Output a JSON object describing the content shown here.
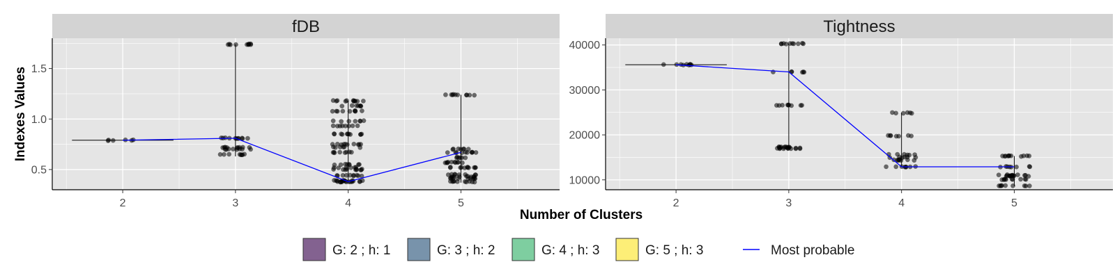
{
  "chart_data": {
    "type": "scatter",
    "xlabel": "Number of Clusters",
    "ylabel": "Indexes Values",
    "x_categories": [
      "2",
      "3",
      "4",
      "5"
    ],
    "panels": [
      {
        "title": "fDB",
        "ylim": [
          0.3,
          1.8
        ],
        "yticks": [
          0.5,
          1.0,
          1.5
        ],
        "ytick_labels": [
          "0.5",
          "1.0",
          "1.5"
        ],
        "point_levels": [
          [
            0.79
          ],
          [
            1.74,
            0.81,
            0.72,
            0.7,
            0.65
          ],
          [
            1.18,
            1.13,
            1.08,
            0.98,
            0.93,
            0.85,
            0.75,
            0.72,
            0.67,
            0.55,
            0.52,
            0.5,
            0.44,
            0.39,
            0.38
          ],
          [
            1.24,
            0.7,
            0.67,
            0.62,
            0.57,
            0.52,
            0.45,
            0.43,
            0.41,
            0.38
          ]
        ],
        "whiskers": [
          [
            0.79,
            0.79
          ],
          [
            0.63,
            1.74
          ],
          [
            0.37,
            1.18
          ],
          [
            0.37,
            1.24
          ]
        ],
        "medians": [
          0.79,
          0.81,
          0.38,
          0.67
        ],
        "most_probable": [
          0.79,
          0.81,
          0.38,
          0.67
        ]
      },
      {
        "title": "Tightness",
        "ylim": [
          7800,
          41500
        ],
        "yticks": [
          10000,
          20000,
          30000,
          40000
        ],
        "ytick_labels": [
          "10000",
          "20000",
          "30000",
          "40000"
        ],
        "point_levels": [
          [
            35600
          ],
          [
            40300,
            34000,
            26600,
            17300,
            17000
          ],
          [
            24900,
            19800,
            15600,
            15000,
            14400,
            12900
          ],
          [
            15300,
            12900,
            11100,
            10900,
            10100,
            8700
          ]
        ],
        "whiskers": [
          [
            35600,
            35600
          ],
          [
            16900,
            40300
          ],
          [
            12800,
            24900
          ],
          [
            8600,
            15300
          ]
        ],
        "medians": [
          35600,
          34000,
          14400,
          12900
        ],
        "most_probable": [
          35600,
          34000,
          12900,
          12900
        ]
      }
    ],
    "legend": {
      "position": "bottom",
      "items": [
        {
          "label": "G: 2 ; h: 1",
          "color": "#836290"
        },
        {
          "label": "G: 3 ; h: 2",
          "color": "#7893ab"
        },
        {
          "label": "G: 4 ; h: 3",
          "color": "#7ecea0"
        },
        {
          "label": "G: 5 ; h: 3",
          "color": "#fdee77"
        }
      ],
      "line_item": {
        "label": "Most probable",
        "color": "#0000ff"
      }
    },
    "grid": true,
    "colors": {
      "panel_bg": "#e5e5e5",
      "strip_bg": "#d3d3d3",
      "grid": "#ffffff",
      "points": "#000000",
      "most_probable_line": "#0000ff"
    }
  }
}
